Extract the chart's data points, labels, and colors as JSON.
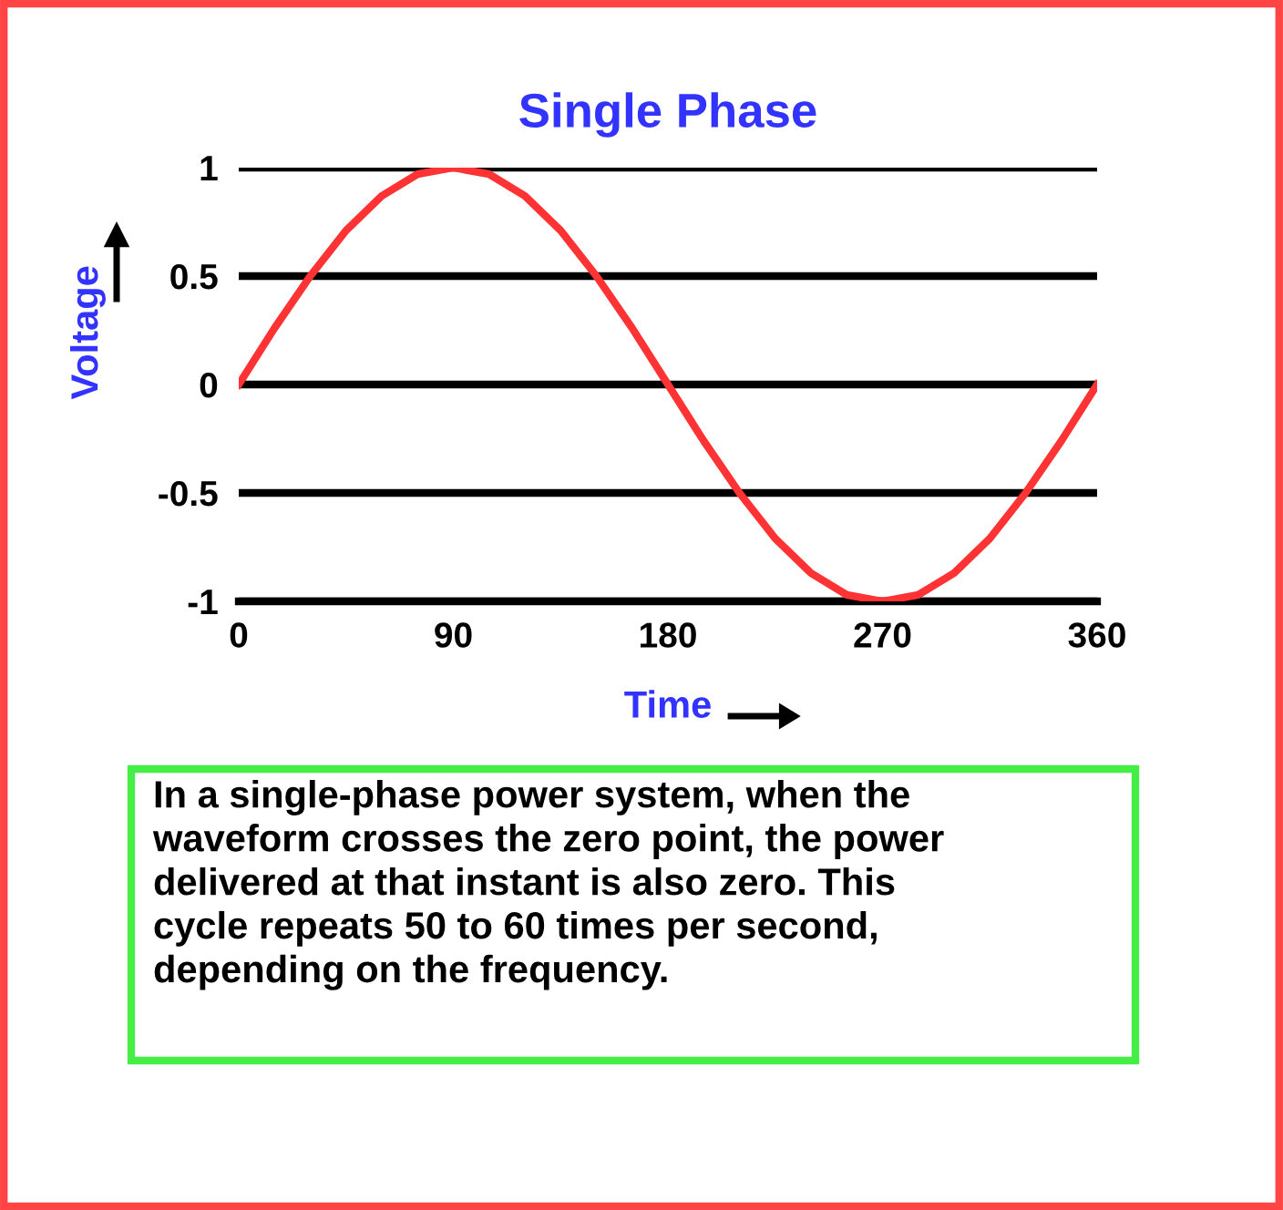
{
  "chart_data": {
    "type": "line",
    "title": "Single Phase",
    "xlabel": "Time",
    "ylabel": "Voltage",
    "x": [
      0,
      15,
      30,
      45,
      60,
      75,
      90,
      105,
      120,
      135,
      150,
      165,
      180,
      195,
      210,
      225,
      240,
      255,
      270,
      285,
      300,
      315,
      330,
      345,
      360
    ],
    "series": [
      {
        "color": "#ff3333",
        "values": [
          0,
          0.26,
          0.5,
          0.71,
          0.87,
          0.97,
          1,
          0.97,
          0.87,
          0.71,
          0.5,
          0.26,
          0,
          -0.26,
          -0.5,
          -0.71,
          -0.87,
          -0.97,
          -1,
          -0.97,
          -0.87,
          -0.71,
          -0.5,
          -0.26,
          0
        ]
      }
    ],
    "xlim": [
      0,
      360
    ],
    "ylim": [
      -1,
      1
    ],
    "xticks": [
      0,
      90,
      180,
      270,
      360
    ],
    "yticks": [
      -1,
      -0.5,
      0,
      0.5,
      1
    ],
    "grid": "y",
    "legend": false,
    "marker": "none",
    "line_style": "solid",
    "annotations": [
      "In a single-phase power system, when the\nwaveform crosses the zero point, the power\ndelivered at that instant is also zero. This\ncycle repeats 50 to 60 times per second,\ndepending on the frequency."
    ]
  }
}
